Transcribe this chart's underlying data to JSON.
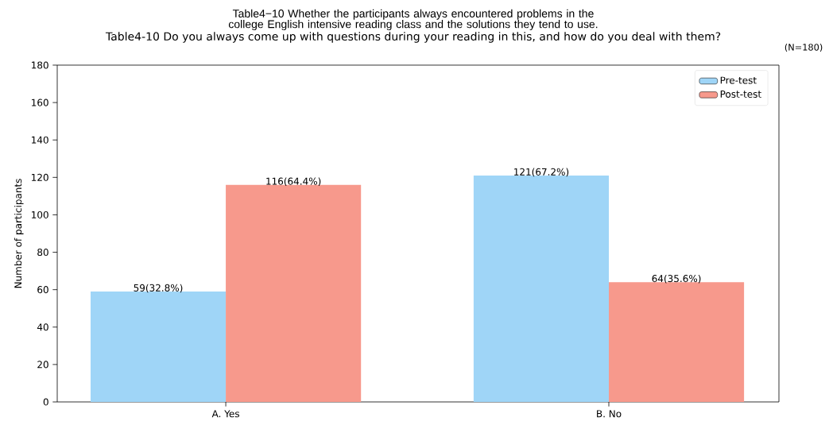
{
  "chart_data": {
    "type": "bar",
    "title": "Table4−10 Whether the participants always encountered problems in the college English intensive reading class and the solutions they tend to use.",
    "subtitle": "Table4-10 Do you always come up with questions during your reading in this, and how do you deal with them?",
    "annotations": [
      "(N=180)"
    ],
    "ylabel": "Number of participants",
    "categories": [
      "A. Yes",
      "B. No"
    ],
    "series": [
      {
        "name": "Pre-test",
        "color": "#9fd5f7",
        "values": [
          59,
          121
        ],
        "value_labels": [
          "59(32.8%)",
          "121(67.2%)"
        ]
      },
      {
        "name": "Post-test",
        "color": "#f7998c",
        "values": [
          116,
          64
        ],
        "value_labels": [
          "116(64.4%)",
          "64(35.6%)"
        ]
      }
    ],
    "ylim": [
      0,
      180
    ],
    "yticks": [
      0,
      20,
      40,
      60,
      80,
      100,
      120,
      140,
      160,
      180
    ],
    "legend": "top right"
  }
}
